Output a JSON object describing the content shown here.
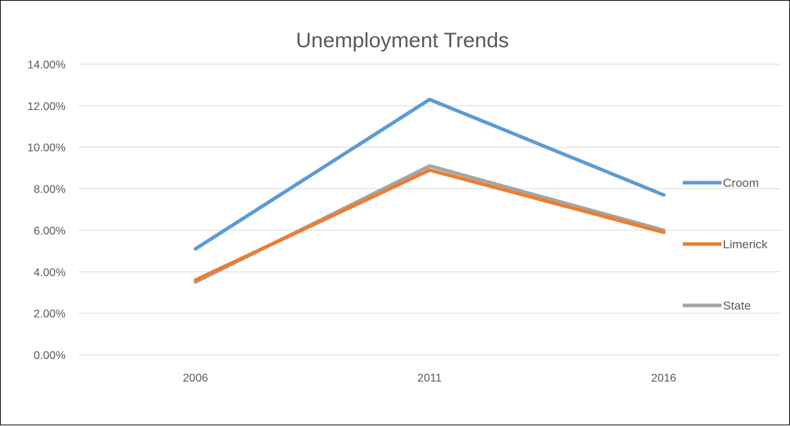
{
  "chart_data": {
    "type": "line",
    "title": "Unemployment Trends",
    "xlabel": "",
    "ylabel": "",
    "categories": [
      "2006",
      "2011",
      "2016"
    ],
    "ylim": [
      0,
      0.14
    ],
    "yticks": [
      "0.00%",
      "2.00%",
      "4.00%",
      "6.00%",
      "8.00%",
      "10.00%",
      "12.00%",
      "14.00%"
    ],
    "grid": true,
    "legend_position": "right",
    "series": [
      {
        "name": "Croom",
        "color": "#5B9BD5",
        "values": [
          0.051,
          0.123,
          0.077
        ]
      },
      {
        "name": "Limerick",
        "color": "#ED7D31",
        "values": [
          0.036,
          0.089,
          0.059
        ]
      },
      {
        "name": "State",
        "color": "#A5A5A5",
        "values": [
          0.035,
          0.091,
          0.06
        ]
      }
    ]
  }
}
